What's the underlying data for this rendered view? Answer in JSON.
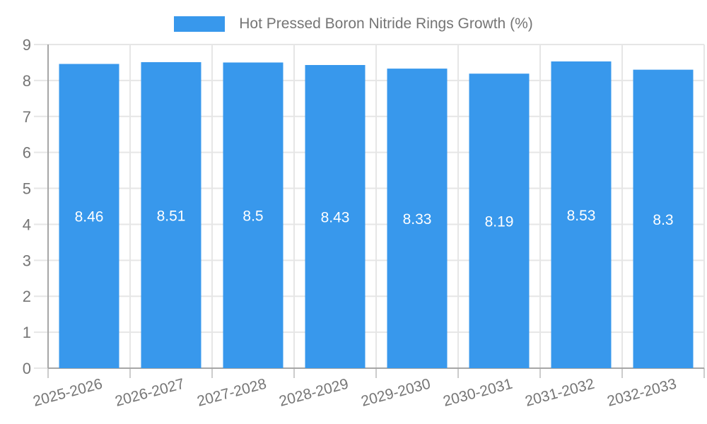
{
  "chart_data": {
    "type": "bar",
    "title": "Hot Pressed Boron Nitride Rings Growth (%)",
    "legend": [
      "Hot Pressed Boron Nitride Rings Growth (%)"
    ],
    "legend_position": "top",
    "categories": [
      "2025-2026",
      "2026-2027",
      "2027-2028",
      "2028-2029",
      "2029-2030",
      "2030-2031",
      "2031-2032",
      "2032-2033"
    ],
    "series": [
      {
        "name": "Hot Pressed Boron Nitride Rings Growth (%)",
        "values": [
          8.46,
          8.51,
          8.5,
          8.43,
          8.33,
          8.19,
          8.53,
          8.3
        ]
      }
    ],
    "value_labels": [
      "8.46",
      "8.51",
      "8.5",
      "8.43",
      "8.33",
      "8.19",
      "8.53",
      "8.3"
    ],
    "xlabel": "",
    "ylabel": "",
    "ylim": [
      0,
      9
    ],
    "y_ticks": [
      0,
      1,
      2,
      3,
      4,
      5,
      6,
      7,
      8,
      9
    ],
    "grid": true,
    "x_tick_label_rotation_deg": -15,
    "colors": {
      "bar": "#3898ec",
      "value_label": "#ffffff",
      "axis_label": "#757575",
      "legend_text": "#757575",
      "gridline": "#e6e6e6",
      "tick_mark": "#cccccc",
      "axis_line": "#a6a6a6",
      "background": "#ffffff"
    }
  }
}
